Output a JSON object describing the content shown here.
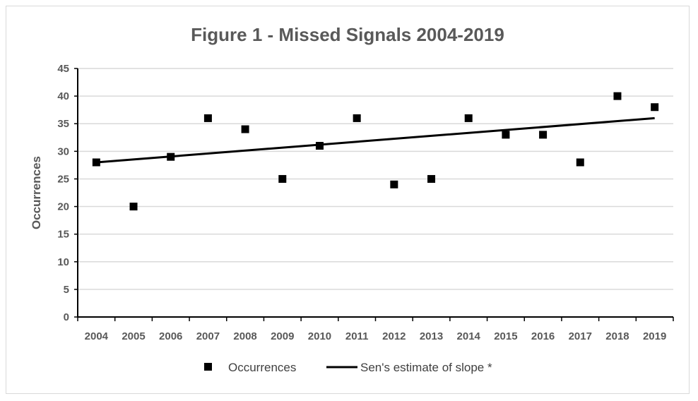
{
  "chart_data": {
    "type": "scatter",
    "title": "Figure 1 - Missed Signals 2004-2019",
    "xlabel": "",
    "ylabel": "Occurrences",
    "ylim": [
      0,
      45
    ],
    "yticks": [
      0,
      5,
      10,
      15,
      20,
      25,
      30,
      35,
      40,
      45
    ],
    "grid": true,
    "legend_position": "bottom",
    "categories": [
      "2004",
      "2005",
      "2006",
      "2007",
      "2008",
      "2009",
      "2010",
      "2011",
      "2012",
      "2013",
      "2014",
      "2015",
      "2016",
      "2017",
      "2018",
      "2019"
    ],
    "series": [
      {
        "name": "Occurrences",
        "type": "scatter",
        "marker": "square",
        "color": "#000000",
        "values": [
          28,
          20,
          29,
          36,
          34,
          25,
          31,
          36,
          24,
          25,
          36,
          33,
          33,
          28,
          40,
          38
        ]
      },
      {
        "name": "Sen's estimate of slope *",
        "type": "line",
        "color": "#000000",
        "start": 28.0,
        "end": 36.0
      }
    ]
  }
}
